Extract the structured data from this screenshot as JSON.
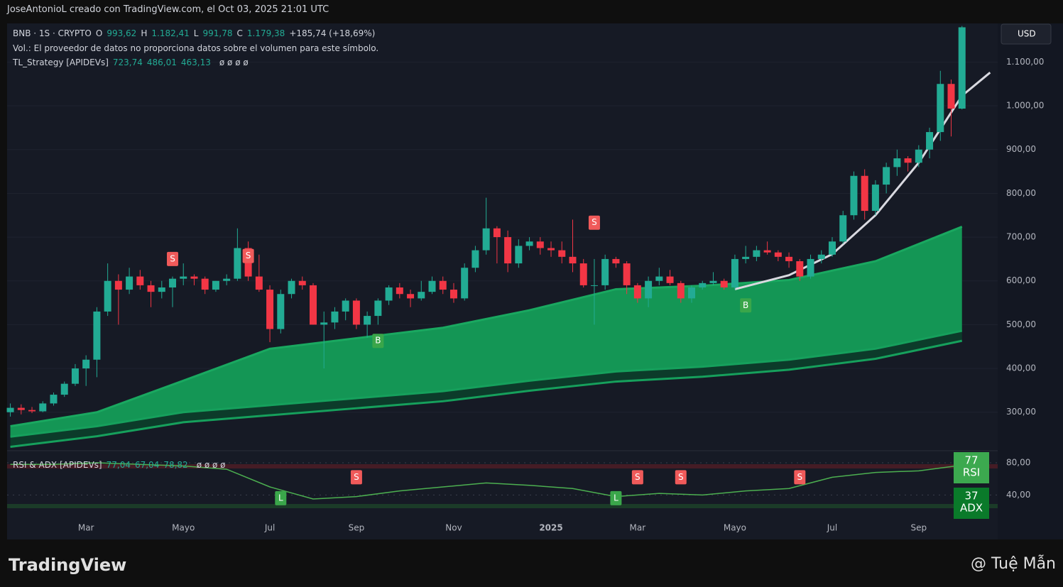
{
  "header": {
    "attribution": "JoseAntonioL creado con TradingView.com, el Oct 03, 2025 21:01 UTC",
    "symbol": "BNB · 1S · CRYPTO",
    "ohlc": [
      "O",
      "993,62",
      "H",
      "1.182,41",
      "L",
      "991,78",
      "C",
      "1.179,38",
      "+185,74 (+18,69%)"
    ],
    "volume_note": "Vol.: El proveedor de datos no proporciona datos sobre el volumen para este símbolo.",
    "indicator": "TL_Strategy [APIDEVs]",
    "indicator_values": [
      "723,74",
      "486,01",
      "463,13"
    ],
    "indicator_nulls": "ø ø ø ø"
  },
  "footer": {
    "brand": "TradingView",
    "credit": "@ Tuệ Mẫn"
  },
  "chart_data": [
    {
      "type": "candlestick",
      "currency": "USD",
      "categories": [
        null,
        null,
        null,
        null,
        null,
        null,
        null,
        "Mar",
        null,
        null,
        null,
        null,
        null,
        null,
        null,
        null,
        "Mayo",
        null,
        null,
        null,
        null,
        null,
        null,
        null,
        "Jul",
        null,
        null,
        null,
        null,
        null,
        null,
        null,
        "Sep",
        null,
        null,
        null,
        null,
        null,
        null,
        null,
        null,
        "Nov",
        null,
        null,
        null,
        null,
        null,
        null,
        null,
        null,
        "2025",
        null,
        null,
        null,
        null,
        null,
        null,
        null,
        "Mar",
        null,
        null,
        null,
        null,
        null,
        null,
        null,
        null,
        "Mayo",
        null,
        null,
        null,
        null,
        null,
        null,
        null,
        null,
        "Jul",
        null,
        null,
        null,
        null,
        null,
        null,
        null,
        "Sep",
        null,
        null,
        null,
        null
      ],
      "open": [
        300,
        310,
        305,
        302,
        320,
        340,
        365,
        400,
        420,
        530,
        600,
        580,
        610,
        590,
        575,
        585,
        605,
        610,
        605,
        580,
        600,
        605,
        675,
        610,
        580,
        490,
        570,
        600,
        590,
        500,
        505,
        530,
        555,
        500,
        520,
        555,
        585,
        570,
        560,
        575,
        600,
        580,
        560,
        630,
        670,
        720,
        700,
        640,
        680,
        690,
        675,
        670,
        655,
        640,
        590,
        590,
        650,
        640,
        590,
        560,
        600,
        610,
        595,
        560,
        585,
        595,
        600,
        585,
        650,
        655,
        670,
        665,
        655,
        645,
        610,
        650,
        660,
        690,
        750,
        840,
        760,
        820,
        860,
        880,
        870,
        900,
        940,
        1050,
        993.62
      ],
      "high": [
        320,
        318,
        312,
        325,
        345,
        370,
        410,
        430,
        540,
        640,
        615,
        630,
        625,
        600,
        600,
        610,
        640,
        615,
        610,
        600,
        615,
        720,
        690,
        660,
        590,
        580,
        605,
        610,
        595,
        530,
        540,
        560,
        560,
        530,
        560,
        590,
        595,
        580,
        600,
        610,
        610,
        595,
        640,
        680,
        790,
        725,
        715,
        695,
        700,
        700,
        690,
        690,
        740,
        650,
        650,
        660,
        655,
        645,
        595,
        610,
        630,
        625,
        600,
        590,
        600,
        620,
        605,
        660,
        680,
        680,
        690,
        670,
        665,
        650,
        660,
        670,
        700,
        760,
        850,
        855,
        830,
        870,
        900,
        885,
        910,
        950,
        1080,
        1060,
        1182.41
      ],
      "low": [
        290,
        295,
        298,
        300,
        315,
        335,
        360,
        360,
        380,
        520,
        500,
        570,
        580,
        540,
        560,
        540,
        590,
        590,
        570,
        575,
        590,
        600,
        600,
        575,
        460,
        480,
        560,
        580,
        500,
        400,
        490,
        510,
        490,
        470,
        500,
        545,
        560,
        540,
        555,
        570,
        570,
        550,
        555,
        620,
        660,
        640,
        620,
        630,
        670,
        660,
        655,
        640,
        620,
        585,
        500,
        580,
        630,
        570,
        550,
        540,
        590,
        590,
        550,
        550,
        580,
        590,
        580,
        580,
        640,
        645,
        660,
        645,
        630,
        600,
        605,
        640,
        655,
        685,
        740,
        740,
        750,
        800,
        840,
        850,
        860,
        880,
        920,
        930,
        991.78
      ],
      "close": [
        310,
        305,
        302,
        320,
        340,
        365,
        400,
        420,
        530,
        600,
        580,
        610,
        590,
        575,
        585,
        605,
        610,
        605,
        580,
        600,
        605,
        675,
        610,
        580,
        490,
        570,
        600,
        590,
        500,
        505,
        530,
        555,
        500,
        520,
        555,
        585,
        570,
        560,
        575,
        600,
        580,
        560,
        630,
        670,
        720,
        700,
        640,
        680,
        690,
        675,
        670,
        655,
        640,
        590,
        590,
        650,
        640,
        590,
        560,
        600,
        610,
        595,
        560,
        585,
        595,
        600,
        585,
        650,
        655,
        670,
        665,
        655,
        645,
        610,
        650,
        660,
        690,
        750,
        840,
        760,
        820,
        860,
        880,
        870,
        900,
        940,
        1050,
        993.64,
        1179.38
      ],
      "colors": {
        "up": "#22ab94",
        "down": "#f23645",
        "cloud": "#149655",
        "band": "#0c3b2a",
        "trend": "#d9d9e0"
      },
      "xlim": [
        -0.3,
        91.3
      ],
      "ylim": [
        212,
        1185
      ],
      "yticks": [
        {
          "value": 300,
          "label": "300,00"
        },
        {
          "value": 400,
          "label": "400,00"
        },
        {
          "value": 500,
          "label": "500,00"
        },
        {
          "value": 600,
          "label": "600,00"
        },
        {
          "value": 700,
          "label": "700,00"
        },
        {
          "value": 800,
          "label": "800,00"
        },
        {
          "value": 900,
          "label": "900,00"
        },
        {
          "value": 1000,
          "label": "1.000,00"
        },
        {
          "value": 1100,
          "label": "1.100,00"
        }
      ],
      "grid": true,
      "bands": {
        "x": [
          0,
          8,
          16,
          24,
          32,
          40,
          48,
          56,
          64,
          72,
          80,
          88
        ],
        "upper": [
          268,
          300,
          372,
          445,
          469,
          493,
          533,
          581,
          589,
          602,
          645,
          723.74
        ],
        "mid": [
          244,
          268,
          300,
          316,
          332,
          348,
          372,
          393,
          404,
          420,
          445,
          486.01
        ],
        "lower": [
          221,
          245,
          277,
          293,
          309,
          325,
          349,
          370,
          381,
          397,
          422,
          463.13
        ]
      },
      "trend": {
        "x": [
          67,
          72,
          76,
          80,
          84,
          88,
          90.6
        ],
        "values": [
          581,
          613,
          661,
          750,
          870,
          1023,
          1076
        ]
      },
      "signals": [
        {
          "text": "S",
          "x": 15,
          "y": 650
        },
        {
          "text": "S",
          "x": 22,
          "y": 657
        },
        {
          "text": "B",
          "x": 34,
          "y": 463
        },
        {
          "text": "S",
          "x": 54,
          "y": 733
        },
        {
          "text": "B",
          "x": 68,
          "y": 544
        }
      ]
    },
    {
      "type": "line",
      "title": "RSI & ADX [APIDEVs]",
      "legend_values": [
        "77,04",
        "67,04",
        "78,82"
      ],
      "nulls": "ø ø ø ø",
      "x": [
        0,
        4,
        8,
        12,
        16,
        20,
        24,
        28,
        32,
        36,
        40,
        44,
        48,
        52,
        56,
        60,
        64,
        68,
        72,
        76,
        80,
        84,
        88
      ],
      "values": [
        78,
        78,
        80,
        78,
        76,
        72,
        50,
        35,
        38,
        45,
        50,
        55,
        52,
        48,
        38,
        42,
        40,
        45,
        48,
        62,
        68,
        70,
        77
      ],
      "color": "#4caf50",
      "xlim": [
        -0.3,
        91.3
      ],
      "ylim": [
        20,
        95
      ],
      "yticks": [
        {
          "value": 40,
          "label": "40,00"
        },
        {
          "value": 80,
          "label": "80,00"
        }
      ],
      "badges": [
        {
          "value": 77,
          "label": "RSI"
        },
        {
          "value": 37,
          "label": "ADX"
        }
      ],
      "signals": [
        {
          "text": "L",
          "x": 25,
          "y": 36
        },
        {
          "text": "S",
          "x": 32,
          "y": 62
        },
        {
          "text": "L",
          "x": 56,
          "y": 36
        },
        {
          "text": "S",
          "x": 58,
          "y": 62
        },
        {
          "text": "S",
          "x": 62,
          "y": 62
        },
        {
          "text": "S",
          "x": 73,
          "y": 62
        }
      ]
    }
  ]
}
